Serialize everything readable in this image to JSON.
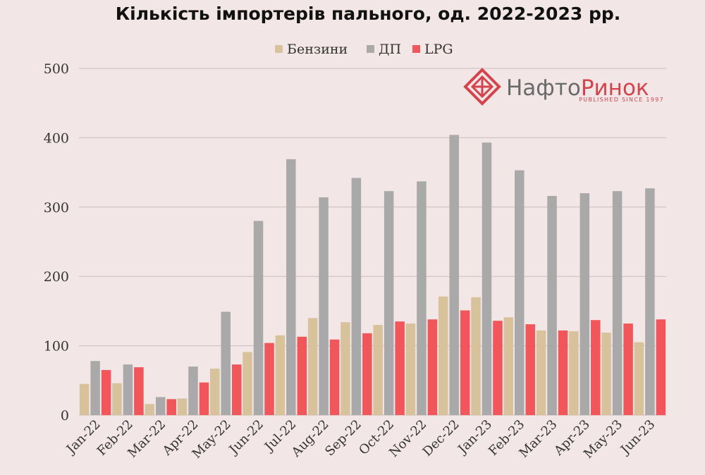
{
  "chart_data": {
    "type": "bar",
    "title": "Кількість імпортерів пального, од. 2022-2023 рр.",
    "categories": [
      "Jan-22",
      "Feb-22",
      "Mar-22",
      "Apr-22",
      "May-22",
      "Jun-22",
      "Jul-22",
      "Aug-22",
      "Sep-22",
      "Oct-22",
      "Nov-22",
      "Dec-22",
      "Jan-23",
      "Feb-23",
      "Mar-23",
      "Apr-23",
      "May-23",
      "Jun-23"
    ],
    "series": [
      {
        "name": "Бензини",
        "color": "#d7c29b",
        "values": [
          45,
          46,
          16,
          24,
          67,
          91,
          115,
          140,
          134,
          130,
          132,
          171,
          170,
          141,
          122,
          121,
          119,
          105
        ]
      },
      {
        "name": "ДП",
        "color": "#a9a9a9",
        "values": [
          78,
          73,
          26,
          70,
          149,
          280,
          369,
          314,
          342,
          323,
          337,
          404,
          393,
          353,
          316,
          320,
          323,
          327
        ]
      },
      {
        "name": "LPG",
        "color": "#f0565a",
        "values": [
          65,
          69,
          23,
          47,
          73,
          104,
          113,
          109,
          118,
          135,
          138,
          151,
          136,
          131,
          122,
          137,
          132,
          138
        ]
      }
    ],
    "y_ticks": [
      "0",
      "100",
      "200",
      "300",
      "400",
      "500"
    ],
    "ylim": [
      0,
      500
    ],
    "grid": true,
    "legend_position": "top-center"
  },
  "logo": {
    "name_part1": "Нафто",
    "name_part2": "Ринок",
    "tagline": "PUBLISHED SINCE 1997",
    "color_dark": "#6a6a6a",
    "color_accent": "#d4444c"
  }
}
